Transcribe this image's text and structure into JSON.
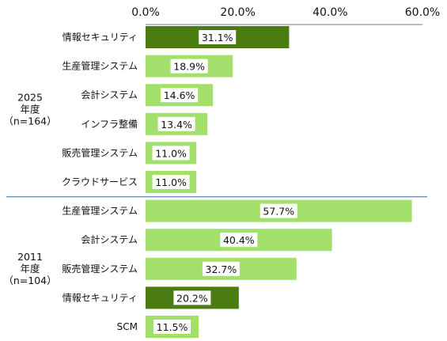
{
  "chart_data": {
    "type": "bar",
    "orientation": "horizontal",
    "xlim": [
      0,
      60
    ],
    "x_ticks": [
      "0.0%",
      "20.0%",
      "40.0%",
      "60.0%"
    ],
    "x_tick_values": [
      0,
      20,
      40,
      60
    ],
    "grid": false,
    "colors": {
      "normal": "#a3df6b",
      "highlight": "#4a7c12",
      "separator": "#2f6fa0"
    },
    "groups": [
      {
        "label_lines": [
          "2025",
          "年度",
          "（n=164）"
        ],
        "categories": [
          "情報セキュリティ",
          "生産管理システム",
          "会計システム",
          "インフラ整備",
          "販売管理システム",
          "クラウドサービス"
        ],
        "values": [
          31.1,
          18.9,
          14.6,
          13.4,
          11.0,
          11.0
        ],
        "labels": [
          "31.1%",
          "18.9%",
          "14.6%",
          "13.4%",
          "11.0%",
          "11.0%"
        ],
        "highlight": [
          true,
          false,
          false,
          false,
          false,
          false
        ]
      },
      {
        "label_lines": [
          "2011",
          "年度",
          "（n=104）"
        ],
        "categories": [
          "生産管理システム",
          "会計システム",
          "販売管理システム",
          "情報セキュリティ",
          "SCM"
        ],
        "values": [
          57.7,
          40.4,
          32.7,
          20.2,
          11.5
        ],
        "labels": [
          "57.7%",
          "40.4%",
          "32.7%",
          "20.2%",
          "11.5%"
        ],
        "highlight": [
          false,
          false,
          false,
          true,
          false
        ]
      }
    ]
  }
}
